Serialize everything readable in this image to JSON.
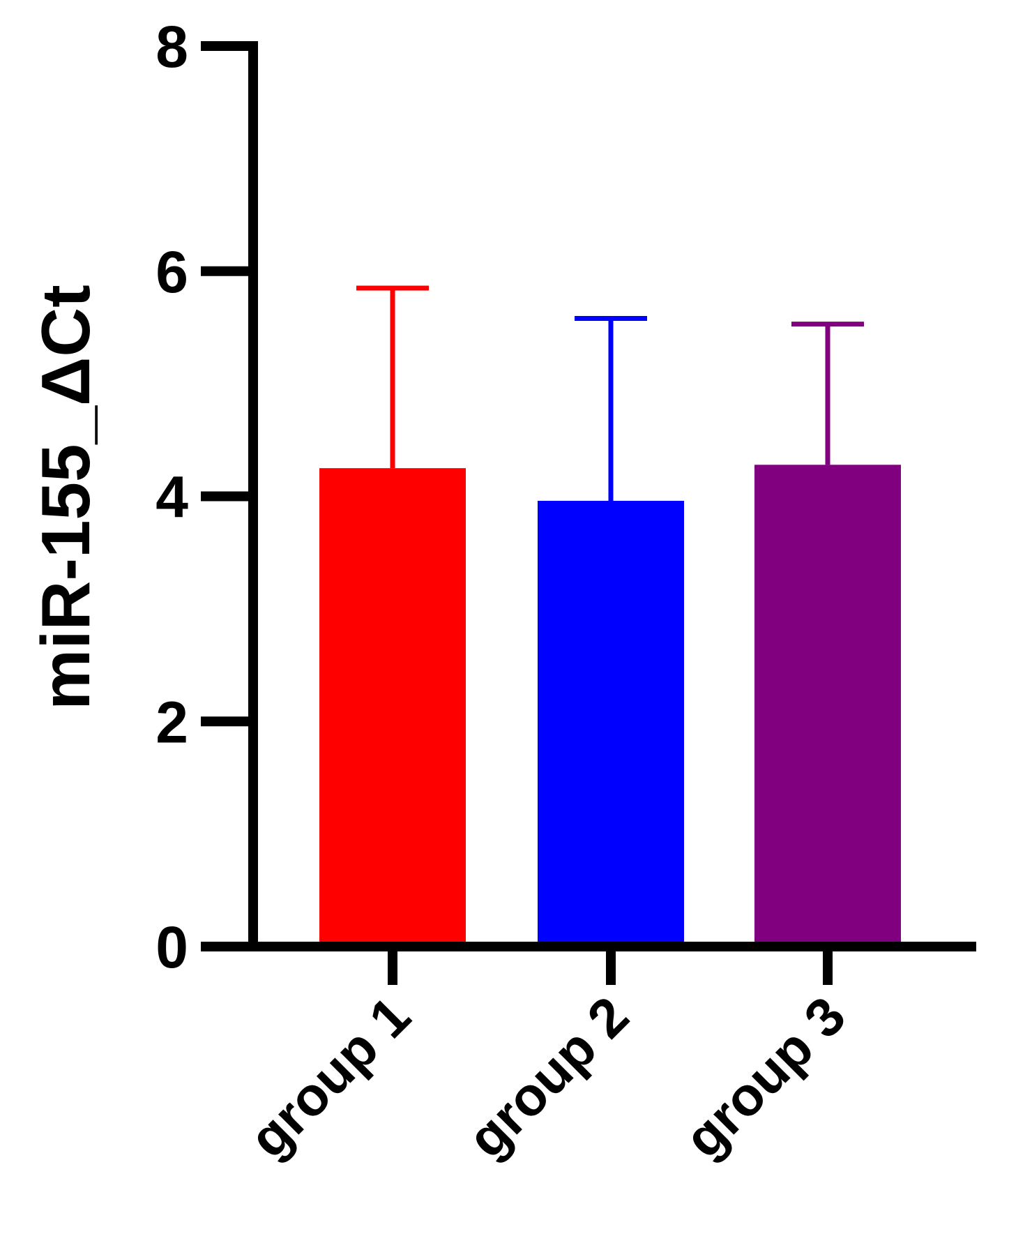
{
  "chart_data": {
    "type": "bar",
    "title": "",
    "xlabel": "",
    "ylabel": "miR-155_ΔCt",
    "ylim": [
      0,
      8
    ],
    "yticks": [
      0,
      2,
      4,
      6,
      8
    ],
    "categories": [
      "group 1",
      "group 2",
      "group 3"
    ],
    "values": [
      4.25,
      3.96,
      4.28
    ],
    "error_upper": [
      5.85,
      5.58,
      5.53
    ],
    "colors": [
      "#ff0000",
      "#0000ff",
      "#800080"
    ],
    "grid": false,
    "legend": "none"
  }
}
